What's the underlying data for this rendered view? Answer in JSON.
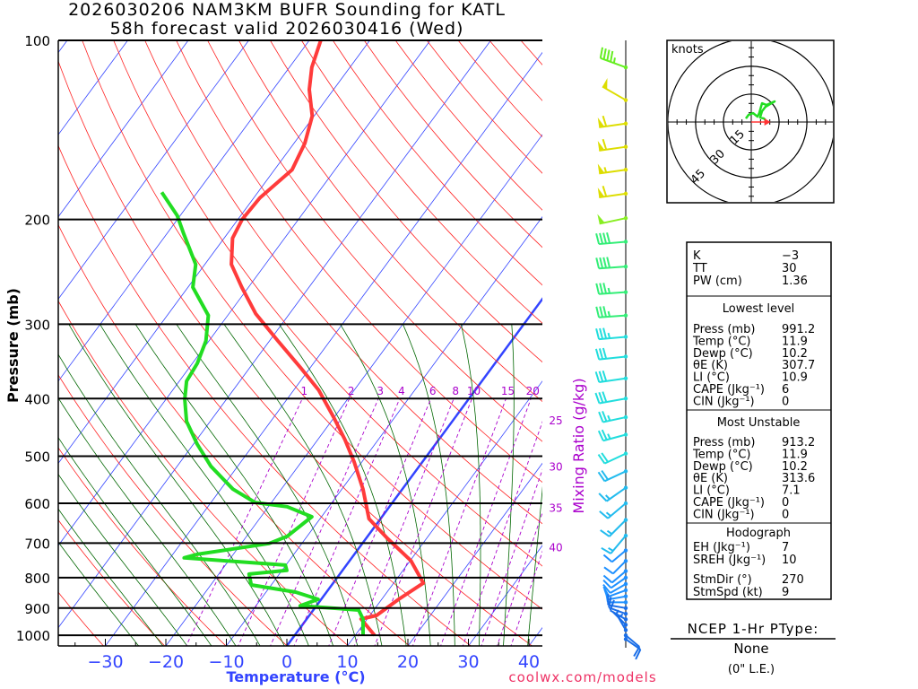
{
  "title": {
    "line1": "2026030206 NAM3KM BUFR Sounding for KATL",
    "line2": "58h forecast valid 2026030416 (Wed)"
  },
  "credit": "coolwx.com/models",
  "chart_data": {
    "type": "line",
    "subtype": "skew-t log-p",
    "ylabel": "Pressure (mb)",
    "xlabel": "Temperature (°C)",
    "mixing_ratio_label": "Mixing Ratio (g/kg)",
    "pressure_ticks": [
      100,
      200,
      300,
      400,
      500,
      600,
      700,
      800,
      900,
      1000
    ],
    "pressure_tick_labels": [
      "100",
      "200",
      "300",
      "400",
      "500",
      "600",
      "700",
      "800",
      "900",
      "1000"
    ],
    "temp_ticks": [
      -30,
      -20,
      -10,
      0,
      10,
      20,
      30,
      40
    ],
    "temp_tick_labels": [
      "−30",
      "−20",
      "−10",
      "0",
      "10",
      "20",
      "30",
      "40"
    ],
    "ylim": [
      1042,
      100
    ],
    "mixing_ratios": [
      1,
      2,
      3,
      4,
      6,
      8,
      10,
      15,
      20,
      25,
      30,
      35,
      40
    ],
    "mixing_ratio_labels": [
      "1",
      "2",
      "3",
      "4",
      "6",
      "8",
      "10",
      "15",
      "20",
      "25",
      "30",
      "35",
      "40"
    ],
    "colors": {
      "temp": "#ff3b3b",
      "dewp": "#22dd22",
      "isotherm": "#3344ff",
      "dry": "#ff2222",
      "moist": "#006600",
      "mixing": "#aa00cc"
    },
    "series": [
      {
        "name": "Temperature",
        "points": [
          [
            1000,
            13.2
          ],
          [
            939,
            9.0
          ],
          [
            926,
            11.1
          ],
          [
            870,
            12.8
          ],
          [
            817,
            14.9
          ],
          [
            749,
            10.1
          ],
          [
            687,
            3.5
          ],
          [
            637,
            -1.9
          ],
          [
            568,
            -6.5
          ],
          [
            511,
            -11.3
          ],
          [
            469,
            -15.5
          ],
          [
            430,
            -20.1
          ],
          [
            387,
            -25.9
          ],
          [
            355,
            -31.6
          ],
          [
            320,
            -38.6
          ],
          [
            288,
            -45.6
          ],
          [
            260,
            -51.1
          ],
          [
            238,
            -55.6
          ],
          [
            215,
            -58.6
          ],
          [
            200,
            -59.3
          ],
          [
            184,
            -59.0
          ],
          [
            165,
            -57.1
          ],
          [
            149,
            -58.2
          ],
          [
            134,
            -60.3
          ],
          [
            121,
            -64.0
          ],
          [
            111,
            -66.3
          ],
          [
            100,
            -68.1
          ]
        ]
      },
      {
        "name": "Dewpoint",
        "points": [
          [
            1000,
            11.3
          ],
          [
            939,
            9.3
          ],
          [
            907,
            7.5
          ],
          [
            892,
            -2.7
          ],
          [
            870,
            -0.5
          ],
          [
            846,
            -5.1
          ],
          [
            823,
            -13.3
          ],
          [
            789,
            -15.0
          ],
          [
            778,
            -9.2
          ],
          [
            762,
            -10.1
          ],
          [
            741,
            -27.7
          ],
          [
            731,
            -26.0
          ],
          [
            701,
            -15.4
          ],
          [
            682,
            -13.3
          ],
          [
            632,
            -11.6
          ],
          [
            608,
            -16.9
          ],
          [
            598,
            -22.7
          ],
          [
            568,
            -28.0
          ],
          [
            520,
            -34.4
          ],
          [
            477,
            -39.4
          ],
          [
            437,
            -43.9
          ],
          [
            401,
            -46.9
          ],
          [
            374,
            -48.8
          ],
          [
            349,
            -49.2
          ],
          [
            320,
            -50.5
          ],
          [
            290,
            -53.2
          ],
          [
            260,
            -59.2
          ],
          [
            238,
            -61.5
          ],
          [
            211,
            -67.3
          ],
          [
            197,
            -70.5
          ],
          [
            180,
            -75.9
          ]
        ]
      }
    ],
    "winds": [
      [
        111,
        290,
        45
      ],
      [
        126,
        300,
        50
      ],
      [
        138,
        262,
        60
      ],
      [
        151,
        262,
        60
      ],
      [
        165,
        262,
        55
      ],
      [
        181,
        262,
        60
      ],
      [
        199,
        258,
        50
      ],
      [
        218,
        265,
        40
      ],
      [
        240,
        266,
        40
      ],
      [
        265,
        266,
        35
      ],
      [
        290,
        266,
        35
      ],
      [
        315,
        265,
        35
      ],
      [
        340,
        264,
        30
      ],
      [
        370,
        262,
        30
      ],
      [
        400,
        260,
        30
      ],
      [
        430,
        258,
        25
      ],
      [
        460,
        255,
        25
      ],
      [
        495,
        245,
        20
      ],
      [
        530,
        245,
        20
      ],
      [
        565,
        235,
        15
      ],
      [
        600,
        230,
        15
      ],
      [
        640,
        225,
        15
      ],
      [
        680,
        220,
        15
      ],
      [
        720,
        230,
        12
      ],
      [
        750,
        225,
        12
      ],
      [
        780,
        230,
        12
      ],
      [
        800,
        235,
        12
      ],
      [
        820,
        240,
        10
      ],
      [
        840,
        250,
        10
      ],
      [
        860,
        260,
        10
      ],
      [
        880,
        270,
        10
      ],
      [
        900,
        280,
        10
      ],
      [
        920,
        290,
        10
      ],
      [
        940,
        300,
        10
      ],
      [
        960,
        315,
        5
      ],
      [
        980,
        330,
        5
      ],
      [
        1000,
        130,
        10
      ],
      [
        1015,
        125,
        10
      ]
    ]
  },
  "hodograph": {
    "units_label": "knots",
    "ring_labels": [
      "15",
      "30",
      "45"
    ],
    "rings": [
      15,
      30,
      45
    ],
    "uv": [
      [
        -2.9,
        1.9
      ],
      [
        -1.4,
        3.9
      ],
      [
        1,
        4.8
      ],
      [
        3.4,
        2.9
      ],
      [
        4.3,
        4.8
      ],
      [
        5.8,
        10.1
      ],
      [
        8.2,
        9.2
      ],
      [
        12.6,
        11.1
      ],
      [
        7.7,
        8.2
      ],
      [
        5.8,
        5.8
      ],
      [
        4.8,
        2.4
      ],
      [
        6.8,
        1.9
      ],
      [
        7.7,
        1
      ]
    ],
    "storm_motion": {
      "dir": 270,
      "spd": 9
    }
  },
  "indices": {
    "top": [
      {
        "label": "K",
        "value": "−3"
      },
      {
        "label": "TT",
        "value": "30"
      },
      {
        "label": "PW (cm)",
        "value": "1.36"
      }
    ],
    "lowest": {
      "header": "Lowest level",
      "rows": [
        {
          "label": "Press (mb)",
          "value": "991.2"
        },
        {
          "label": "Temp (°C)",
          "value": "11.9"
        },
        {
          "label": "Dewp (°C)",
          "value": "10.2"
        },
        {
          "label": "θE (K)",
          "value": "307.7"
        },
        {
          "label": "LI (°C)",
          "value": "10.9"
        },
        {
          "label": "CAPE (Jkg⁻¹)",
          "value": "6"
        },
        {
          "label": "CIN (Jkg⁻¹)",
          "value": "0"
        }
      ]
    },
    "unstable": {
      "header": "Most Unstable",
      "rows": [
        {
          "label": "Press (mb)",
          "value": "913.2"
        },
        {
          "label": "Temp (°C)",
          "value": "11.9"
        },
        {
          "label": "Dewp (°C)",
          "value": "10.2"
        },
        {
          "label": "θE (K)",
          "value": "313.6"
        },
        {
          "label": "LI (°C)",
          "value": "7.1"
        },
        {
          "label": "CAPE (Jkg⁻¹)",
          "value": "0"
        },
        {
          "label": "CIN (Jkg⁻¹)",
          "value": "0"
        }
      ]
    },
    "hodo": {
      "header": "Hodograph",
      "rows": [
        {
          "label": "EH (Jkg⁻¹)",
          "value": "7"
        },
        {
          "label": "SREH (Jkg⁻¹)",
          "value": "10"
        },
        {
          "label": "StmDir (°)",
          "value": "270"
        },
        {
          "label": "StmSpd (kt)",
          "value": "9"
        }
      ]
    }
  },
  "ptype": {
    "header": "NCEP 1-Hr PType:",
    "value": "None",
    "note": "(0\" L.E.)"
  }
}
